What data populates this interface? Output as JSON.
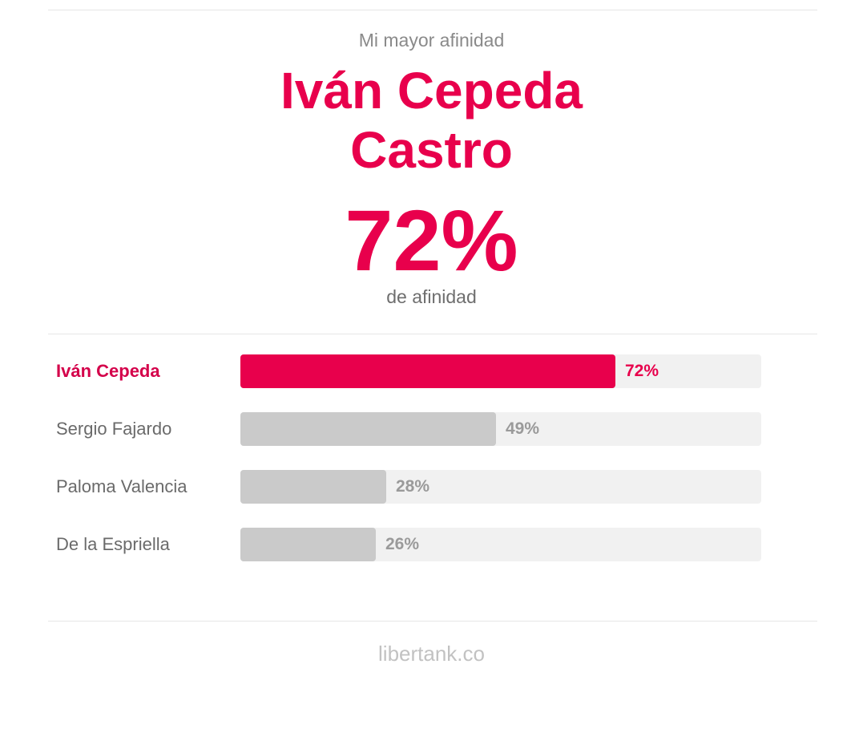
{
  "header": {
    "subtitle": "Mi mayor afinidad",
    "name_line1": "Iván Cepeda",
    "name_line2": "Castro",
    "percent": "72%",
    "percent_caption": "de afinidad"
  },
  "ranking": [
    {
      "name": "Iván Cepeda",
      "value": 72,
      "label": "72%",
      "highlight": true
    },
    {
      "name": "Sergio Fajardo",
      "value": 49,
      "label": "49%",
      "highlight": false
    },
    {
      "name": "Paloma Valencia",
      "value": 28,
      "label": "28%",
      "highlight": false
    },
    {
      "name": "De la Espriella",
      "value": 26,
      "label": "26%",
      "highlight": false
    }
  ],
  "footer": {
    "site": "libertank.co"
  },
  "colors": {
    "accent": "#e8004c",
    "bar_default": "#cacaca",
    "track": "#f1f1f1",
    "muted_text": "#8a8a8a"
  }
}
